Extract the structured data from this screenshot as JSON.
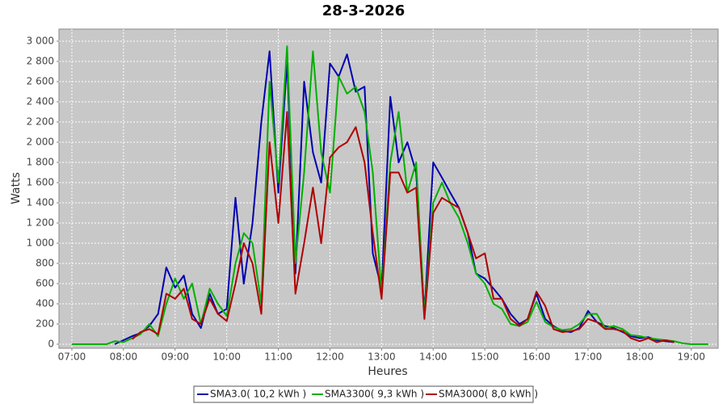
{
  "chart_data": {
    "type": "line",
    "title": "28-3-2026",
    "x_label": "Heures",
    "y_label": "Watts",
    "x": [
      7,
      7.17,
      7.33,
      7.5,
      7.67,
      7.83,
      8,
      8.17,
      8.33,
      8.5,
      8.67,
      8.83,
      9,
      9.17,
      9.33,
      9.5,
      9.67,
      9.83,
      10,
      10.17,
      10.33,
      10.5,
      10.67,
      10.83,
      11,
      11.17,
      11.33,
      11.5,
      11.67,
      11.83,
      12,
      12.17,
      12.33,
      12.5,
      12.67,
      12.83,
      13,
      13.17,
      13.33,
      13.5,
      13.67,
      13.83,
      14,
      14.17,
      14.33,
      14.5,
      14.67,
      14.83,
      15,
      15.17,
      15.33,
      15.5,
      15.67,
      15.83,
      16,
      16.17,
      16.33,
      16.5,
      16.67,
      16.83,
      17,
      17.17,
      17.33,
      17.5,
      17.67,
      17.83,
      18,
      18.17,
      18.33,
      18.5,
      18.67,
      18.83,
      19,
      19.17,
      19.33
    ],
    "series": [
      {
        "name": "SMA3.0( 10,2 kWh )",
        "color": "#0000b0",
        "values": [
          null,
          null,
          null,
          null,
          null,
          0,
          40,
          80,
          110,
          180,
          300,
          760,
          560,
          680,
          300,
          160,
          500,
          300,
          350,
          1450,
          600,
          1200,
          2200,
          2900,
          1500,
          2800,
          700,
          2600,
          1900,
          1600,
          2780,
          2650,
          2870,
          2500,
          2550,
          900,
          550,
          2450,
          1800,
          2000,
          1700,
          300,
          1800,
          1650,
          1500,
          1350,
          1100,
          700,
          650,
          550,
          450,
          300,
          200,
          250,
          500,
          250,
          180,
          130,
          120,
          160,
          330,
          220,
          180,
          160,
          120,
          80,
          60,
          70,
          40,
          30,
          20,
          null,
          null,
          null,
          null
        ]
      },
      {
        "name": "SMA3300( 9,3 kWh )",
        "color": "#00b000",
        "values": [
          0,
          0,
          0,
          0,
          0,
          30,
          20,
          60,
          100,
          200,
          80,
          400,
          650,
          450,
          600,
          200,
          550,
          400,
          280,
          800,
          1100,
          1000,
          400,
          2600,
          1600,
          2950,
          800,
          1700,
          2900,
          1900,
          1500,
          2650,
          2480,
          2550,
          2300,
          1700,
          500,
          1800,
          2300,
          1500,
          1800,
          300,
          1400,
          1600,
          1400,
          1250,
          1000,
          700,
          600,
          400,
          350,
          200,
          180,
          220,
          420,
          220,
          170,
          140,
          150,
          200,
          300,
          300,
          160,
          180,
          150,
          90,
          80,
          60,
          50,
          40,
          30,
          10,
          0,
          0,
          0
        ]
      },
      {
        "name": "SMA3000( 8,0 kWh )",
        "color": "#b00000",
        "values": [
          null,
          null,
          null,
          null,
          null,
          null,
          null,
          50,
          120,
          150,
          100,
          500,
          450,
          550,
          250,
          200,
          450,
          300,
          230,
          600,
          1000,
          800,
          300,
          2000,
          1200,
          2300,
          500,
          1000,
          1550,
          1000,
          1850,
          1950,
          2000,
          2150,
          1800,
          1100,
          450,
          1700,
          1700,
          1500,
          1550,
          250,
          1300,
          1450,
          1400,
          1350,
          1100,
          850,
          900,
          450,
          450,
          250,
          180,
          250,
          520,
          380,
          150,
          120,
          130,
          150,
          250,
          220,
          150,
          150,
          130,
          60,
          30,
          60,
          20,
          40,
          20,
          null,
          null,
          null,
          null
        ]
      }
    ],
    "xlim": [
      6.75,
      19.52
    ],
    "ylim": [
      -40,
      3120
    ],
    "xticks": [
      {
        "value": 7,
        "label": "07:00"
      },
      {
        "value": 8,
        "label": "08:00"
      },
      {
        "value": 9,
        "label": "09:00"
      },
      {
        "value": 10,
        "label": "10:00"
      },
      {
        "value": 11,
        "label": "11:00"
      },
      {
        "value": 12,
        "label": "12:00"
      },
      {
        "value": 13,
        "label": "13:00"
      },
      {
        "value": 14,
        "label": "14:00"
      },
      {
        "value": 15,
        "label": "15:00"
      },
      {
        "value": 16,
        "label": "16:00"
      },
      {
        "value": 17,
        "label": "17:00"
      },
      {
        "value": 18,
        "label": "18:00"
      },
      {
        "value": 19,
        "label": "19:00"
      }
    ],
    "yticks": [
      0,
      200,
      400,
      600,
      800,
      {
        "value": 1000,
        "label": "1 000"
      },
      {
        "value": 1200,
        "label": "1 200"
      },
      {
        "value": 1400,
        "label": "1 400"
      },
      {
        "value": 1600,
        "label": "1 600"
      },
      {
        "value": 1800,
        "label": "1 800"
      },
      {
        "value": 2000,
        "label": "2 000"
      },
      {
        "value": 2200,
        "label": "2 200"
      },
      {
        "value": 2400,
        "label": "2 400"
      },
      {
        "value": 2600,
        "label": "2 600"
      },
      {
        "value": 2800,
        "label": "2 800"
      },
      {
        "value": 3000,
        "label": "3 000"
      }
    ],
    "grid": true,
    "legend": "bottom"
  }
}
